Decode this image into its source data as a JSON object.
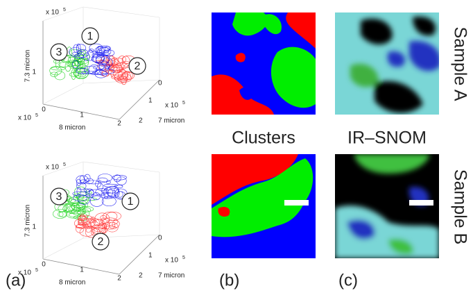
{
  "panel_labels": [
    "(a)",
    "(b)",
    "(c)"
  ],
  "column_titles": [
    "Clusters",
    "IR–SNOM"
  ],
  "row_titles": [
    "Sample A",
    "Sample B"
  ],
  "plots": [
    {
      "multiplier": "x 10",
      "power": "5",
      "z_label": "7.3 micron",
      "x_label": "8 micron",
      "y_label": "7 micron",
      "z_ticks": [
        "1"
      ],
      "x_ticks": [
        "0",
        "1",
        "2"
      ],
      "y_ticks": [
        "0",
        "1",
        "2"
      ],
      "markers": [
        "1",
        "2",
        "3"
      ]
    },
    {
      "multiplier": "x 10",
      "power": "5",
      "z_label": "7.3 micron",
      "x_label": "8 micron",
      "y_label": "7 micron",
      "z_ticks": [
        "1"
      ],
      "x_ticks": [
        "0",
        "1",
        "2"
      ],
      "y_ticks": [
        "0",
        "1",
        "2"
      ],
      "markers": [
        "1",
        "2",
        "3"
      ]
    }
  ]
}
